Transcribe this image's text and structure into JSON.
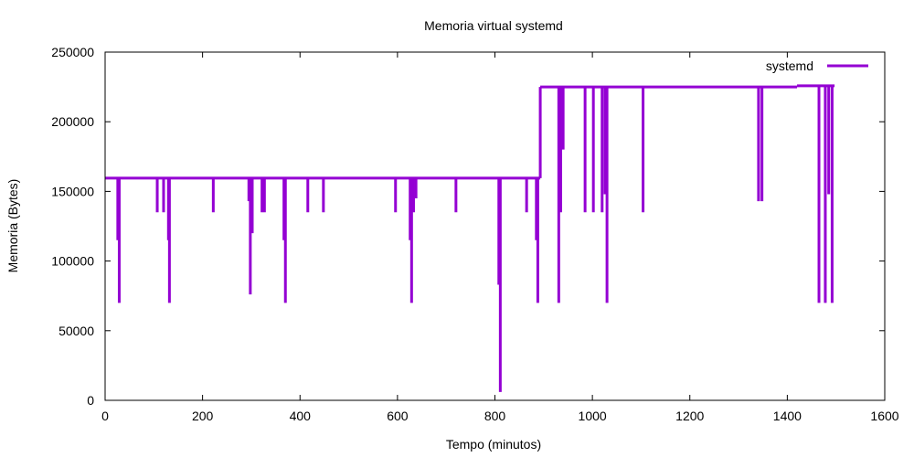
{
  "chart_data": {
    "type": "line",
    "title": "Memoria virtual systemd",
    "xlabel": "Tempo (minutos)",
    "ylabel": "Memoria (Bytes)",
    "xlim": [
      0,
      1600
    ],
    "ylim": [
      0,
      250000
    ],
    "xticks": [
      0,
      200,
      400,
      600,
      800,
      1000,
      1200,
      1400,
      1600
    ],
    "yticks": [
      0,
      50000,
      100000,
      150000,
      200000,
      250000
    ],
    "x_tick_labels": [
      "0",
      "200",
      "400",
      "600",
      "800",
      "1000",
      "1200",
      "1400",
      "1600"
    ],
    "y_tick_labels": [
      "0",
      "50000",
      "100000",
      "150000",
      "200000",
      "250000"
    ],
    "grid": false,
    "legend_position": "top-right",
    "series": [
      {
        "name": "systemd",
        "color": "#9400d3",
        "baseline": [
          {
            "x": [
              0,
              893
            ],
            "y": 159500
          },
          {
            "x": [
              893,
              1420
            ],
            "y": 225000
          },
          {
            "x": [
              1420,
              1497
            ],
            "y": 225800
          }
        ],
        "dips": [
          {
            "x": 26,
            "y": 115000
          },
          {
            "x": 29,
            "y": 70000
          },
          {
            "x": 107,
            "y": 135000
          },
          {
            "x": 120,
            "y": 135000
          },
          {
            "x": 130,
            "y": 115000
          },
          {
            "x": 132,
            "y": 70000
          },
          {
            "x": 222,
            "y": 135000
          },
          {
            "x": 295,
            "y": 143000
          },
          {
            "x": 298,
            "y": 76000
          },
          {
            "x": 302,
            "y": 120000
          },
          {
            "x": 322,
            "y": 135000
          },
          {
            "x": 327,
            "y": 135000
          },
          {
            "x": 367,
            "y": 115000
          },
          {
            "x": 370,
            "y": 70000
          },
          {
            "x": 416,
            "y": 135000
          },
          {
            "x": 448,
            "y": 135000
          },
          {
            "x": 596,
            "y": 135000
          },
          {
            "x": 626,
            "y": 115000
          },
          {
            "x": 629,
            "y": 70000
          },
          {
            "x": 633,
            "y": 135000
          },
          {
            "x": 638,
            "y": 145000
          },
          {
            "x": 720,
            "y": 135000
          },
          {
            "x": 808,
            "y": 83000
          },
          {
            "x": 811,
            "y": 6000
          },
          {
            "x": 865,
            "y": 135000
          },
          {
            "x": 885,
            "y": 115000
          },
          {
            "x": 888,
            "y": 70000
          },
          {
            "x": 931,
            "y": 70000
          },
          {
            "x": 935,
            "y": 135000
          },
          {
            "x": 940,
            "y": 180000
          },
          {
            "x": 985,
            "y": 135000
          },
          {
            "x": 1002,
            "y": 135000
          },
          {
            "x": 1020,
            "y": 135000
          },
          {
            "x": 1026,
            "y": 148000
          },
          {
            "x": 1030,
            "y": 70000
          },
          {
            "x": 1104,
            "y": 135000
          },
          {
            "x": 1341,
            "y": 143000
          },
          {
            "x": 1348,
            "y": 143000
          },
          {
            "x": 1465,
            "y": 70000
          },
          {
            "x": 1478,
            "y": 70000
          },
          {
            "x": 1485,
            "y": 148000
          },
          {
            "x": 1492,
            "y": 70000
          }
        ]
      }
    ]
  }
}
